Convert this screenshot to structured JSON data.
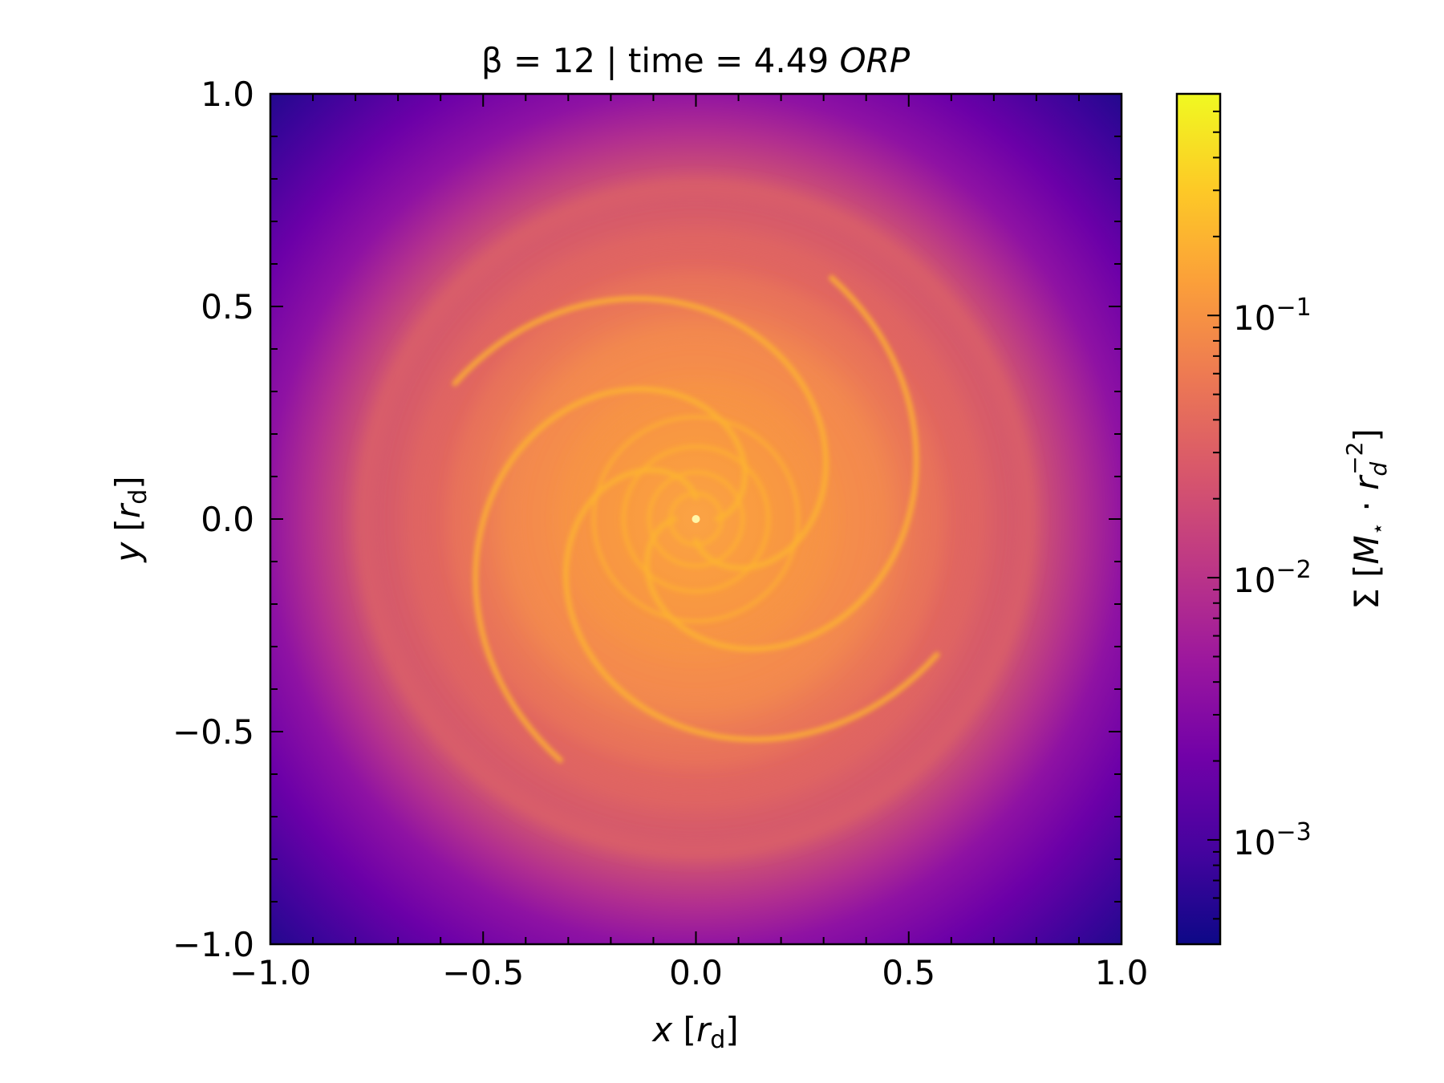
{
  "chart_data": {
    "type": "heatmap",
    "title": {
      "pre": "β = 12 | time = 4.49 ",
      "unit": "ORP"
    },
    "xlabel": {
      "var": "x",
      "open": " [",
      "r": "r",
      "sub": "d",
      "close": "]"
    },
    "ylabel": {
      "var": "y",
      "open": " [",
      "r": "r",
      "sub": "d",
      "close": "]"
    },
    "xlim": [
      -1.0,
      1.0
    ],
    "ylim": [
      -1.0,
      1.0
    ],
    "xticks": [
      -1.0,
      -0.5,
      0.0,
      0.5,
      1.0
    ],
    "yticks": [
      -1.0,
      -0.5,
      0.0,
      0.5,
      1.0
    ],
    "xtick_labels": [
      "−1.0",
      "−0.5",
      "0.0",
      "0.5",
      "1.0"
    ],
    "ytick_labels": [
      "−1.0",
      "−0.5",
      "0.0",
      "0.5",
      "1.0"
    ],
    "colorbar": {
      "label": {
        "pre": "Σ [",
        "m": "M",
        "star": "⋆",
        "dot": " · ",
        "r": "r",
        "sub": "d",
        "sup": "−2",
        "close": "]"
      },
      "scale": "log",
      "colormap": "plasma",
      "range": [
        0.0004,
        0.7
      ],
      "ticks": [
        0.001,
        0.01,
        0.1
      ],
      "tick_labels": [
        {
          "base": "10",
          "exp": "−3"
        },
        {
          "base": "10",
          "exp": "−2"
        },
        {
          "base": "10",
          "exp": "−1"
        }
      ]
    },
    "field": {
      "description_quantity": "surface density",
      "center_value": 0.5,
      "edge_value": 0.0004,
      "spiral_arms": 4
    },
    "grid": false,
    "ticks_direction": "in"
  }
}
